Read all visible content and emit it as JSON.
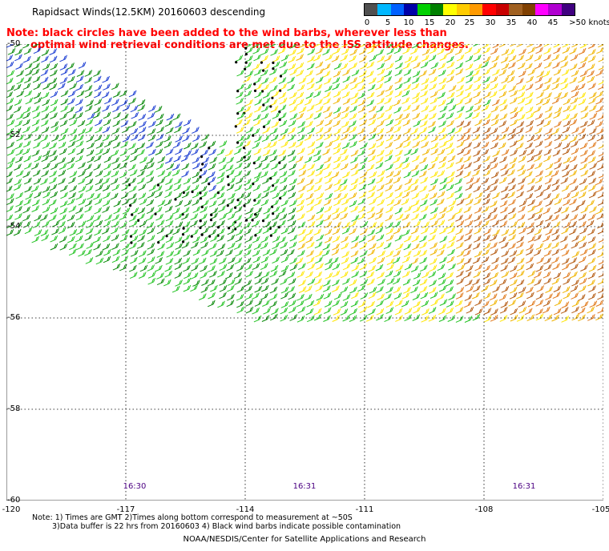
{
  "title": "Rapidsact Winds(12.5KM) 20160603 descending",
  "note_red": {
    "line1": "Note: black circles have been added to the wind barbs, wherever less than",
    "line2": "optimal wind retrieval conditions are met due to the ISS attitude changes."
  },
  "legend": {
    "labels": [
      "0",
      "5",
      "10",
      "15",
      "20",
      "25",
      "30",
      "35",
      "40",
      "45",
      ">50 knots"
    ],
    "colors": [
      "#505050",
      "#00b8ff",
      "#0060ff",
      "#0000a8",
      "#00d000",
      "#008000",
      "#ffff00",
      "#ffcc00",
      "#ff9a00",
      "#ff0000",
      "#c80000",
      "#a06020",
      "#804000",
      "#ff00ff",
      "#b000d0",
      "#400080"
    ]
  },
  "y_axis": {
    "labels": [
      "-50",
      "-52",
      "-54",
      "-56",
      "-58",
      "-60"
    ]
  },
  "x_axis": {
    "labels": [
      "-120",
      "-117",
      "-114",
      "-111",
      "-108",
      "-105"
    ]
  },
  "pass_times": [
    "16:30",
    "16:31",
    "16:31"
  ],
  "footnote": {
    "line1": "Note: 1) Times are GMT 2)Times along bottom correspond to measurement at ~50S",
    "line2": "3)Data buffer is 22 hrs from 20160603 4) Black wind barbs indicate possible contamination"
  },
  "credit": "NOAA/NESDIS/Center for Satellite Applications and Research",
  "map": {
    "lon_range": [
      -120,
      -105
    ],
    "lat_range": [
      -60,
      -50
    ],
    "swath_colors": {
      "blue": "#1a3cd2",
      "green_light": "#22c322",
      "green_dark": "#0a8a0a",
      "yellow": "#ffe600",
      "gold": "#f0b400",
      "orange": "#e07818",
      "brown": "#b45a10",
      "red": "#d02020",
      "black": "#000000"
    }
  }
}
